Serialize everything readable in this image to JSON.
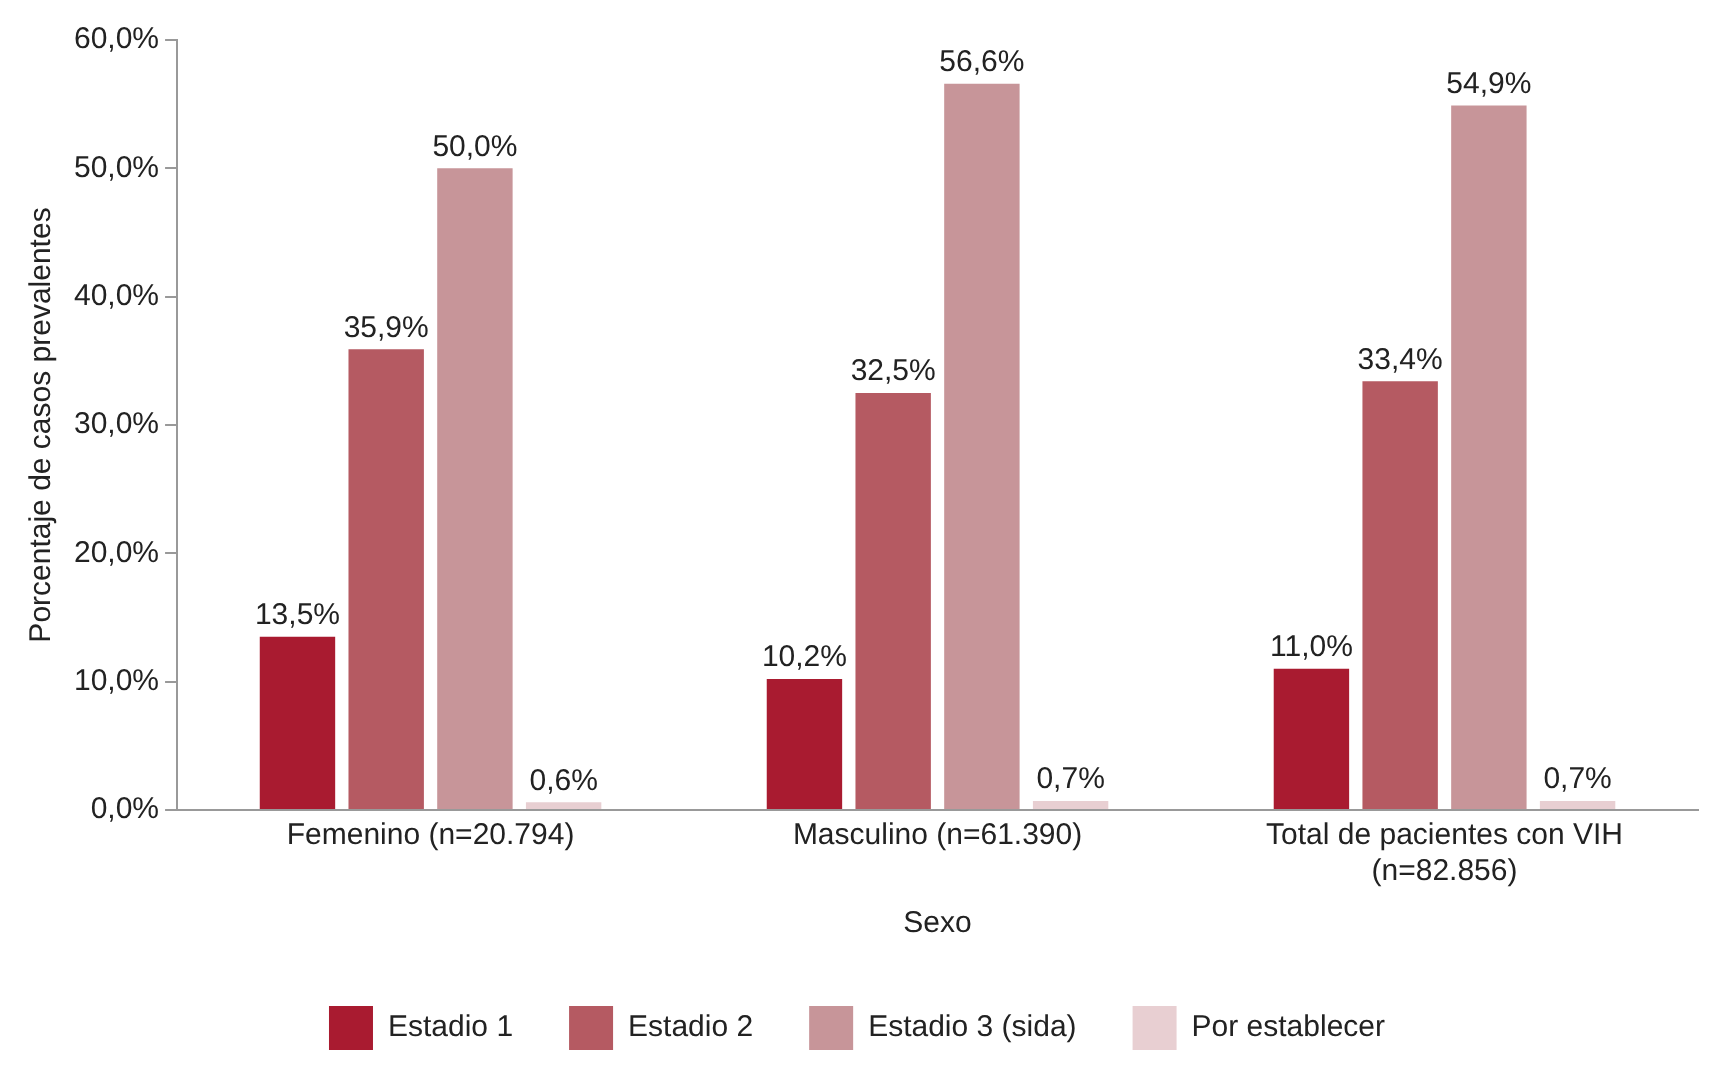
{
  "chart_data": {
    "type": "bar",
    "xlabel": "Sexo",
    "ylabel": "Porcentaje de casos prevalentes",
    "categories": [
      "Femenino (n=20.794)",
      "Masculino (n=61.390)",
      "Total de pacientes con VIH (n=82.856)"
    ],
    "series": [
      {
        "name": "Estadio 1",
        "color": "#a91b30",
        "values": [
          13.5,
          10.2,
          11.0
        ],
        "value_labels": [
          "13,5%",
          "10,2%",
          "11,0%"
        ]
      },
      {
        "name": "Estadio 2",
        "color": "#b55a62",
        "values": [
          35.9,
          32.5,
          33.4
        ],
        "value_labels": [
          "35,9%",
          "32,5%",
          "33,4%"
        ]
      },
      {
        "name": "Estadio 3 (sida)",
        "color": "#c79599",
        "values": [
          50.0,
          56.6,
          54.9
        ],
        "value_labels": [
          "50,0%",
          "56,6%",
          "54,9%"
        ]
      },
      {
        "name": "Por establecer",
        "color": "#e8cfd2",
        "values": [
          0.6,
          0.7,
          0.7
        ],
        "value_labels": [
          "0,6%",
          "0,7%",
          "0,7%"
        ]
      }
    ],
    "ylim": [
      0,
      60
    ],
    "yticks": [
      {
        "value": 0,
        "label": "0,0%"
      },
      {
        "value": 10,
        "label": "10,0%"
      },
      {
        "value": 20,
        "label": "20,0%"
      },
      {
        "value": 30,
        "label": "30,0%"
      },
      {
        "value": 40,
        "label": "40,0%"
      },
      {
        "value": 50,
        "label": "50,0%"
      },
      {
        "value": 60,
        "label": "60,0%"
      }
    ],
    "grid": false,
    "legend": "bottom"
  }
}
